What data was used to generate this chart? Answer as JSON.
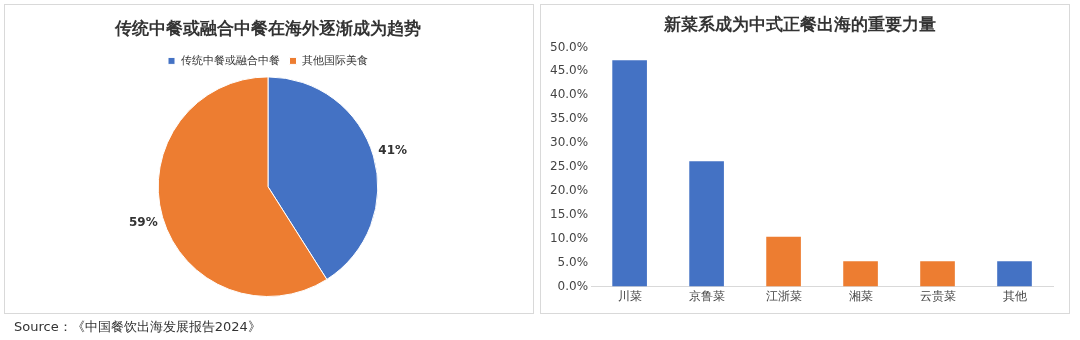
{
  "chart_data": [
    {
      "type": "pie",
      "title": "传统中餐或融合中餐在海外逐渐成为趋势",
      "categories": [
        "传统中餐或融合中餐",
        "其他国际美食"
      ],
      "values": [
        41,
        59
      ],
      "colors": [
        "#4472c4",
        "#ed7d31"
      ],
      "value_labels": [
        "41%",
        "59%"
      ],
      "legend": "top"
    },
    {
      "type": "bar",
      "title": "新菜系成为中式正餐出海的重要力量",
      "categories": [
        "川菜",
        "京鲁菜",
        "江浙菜",
        "湘菜",
        "云贵菜",
        "其他"
      ],
      "values": [
        47.3,
        26.2,
        10.4,
        5.3,
        5.3,
        5.3
      ],
      "colors": [
        "#4472c4",
        "#4472c4",
        "#ed7d31",
        "#ed7d31",
        "#ed7d31",
        "#4472c4"
      ],
      "ylim": [
        0,
        50
      ],
      "yticks": [
        {
          "value": 0,
          "label": "0.0%"
        },
        {
          "value": 5,
          "label": "5.0%"
        },
        {
          "value": 10,
          "label": "10.0%"
        },
        {
          "value": 15,
          "label": "15.0%"
        },
        {
          "value": 20,
          "label": "20.0%"
        },
        {
          "value": 25,
          "label": "25.0%"
        },
        {
          "value": 30,
          "label": "30.0%"
        },
        {
          "value": 35,
          "label": "35.0%"
        },
        {
          "value": 40,
          "label": "40.0%"
        },
        {
          "value": 45,
          "label": "45.0%"
        },
        {
          "value": 50,
          "label": "50.0%"
        }
      ],
      "grid": false,
      "legend": false,
      "annotations": [
        "Source：《中国餐饮出海发展报告2024》"
      ]
    }
  ]
}
